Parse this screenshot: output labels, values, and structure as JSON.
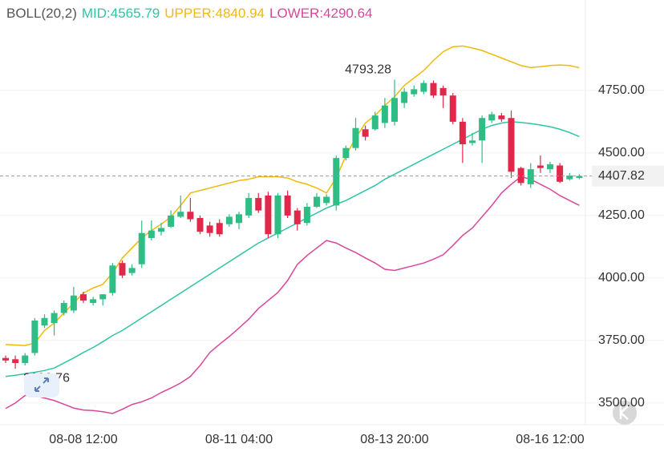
{
  "chart_data": {
    "type": "candlestick",
    "indicator": "BOLL(20,2)",
    "categories": [
      null,
      null,
      null,
      null,
      null,
      null,
      null,
      null,
      "08-08 12:00",
      null,
      null,
      null,
      null,
      null,
      null,
      null,
      null,
      null,
      null,
      null,
      null,
      null,
      null,
      null,
      "08-11 04:00",
      null,
      null,
      null,
      null,
      null,
      null,
      null,
      null,
      null,
      null,
      null,
      null,
      null,
      null,
      null,
      "08-13 20:00",
      null,
      null,
      null,
      null,
      null,
      null,
      null,
      null,
      null,
      null,
      null,
      null,
      null,
      null,
      null,
      "08-16 12:00",
      null,
      null,
      null
    ],
    "ohlc": {
      "open": [
        3680,
        3675,
        3660,
        3700,
        3810,
        3820,
        3860,
        3870,
        3935,
        3900,
        3915,
        3940,
        4060,
        4020,
        4055,
        4160,
        4185,
        4205,
        4245,
        4265,
        4240,
        4210,
        4220,
        4215,
        4220,
        4250,
        4320,
        4330,
        4175,
        4330,
        4270,
        4220,
        4285,
        4300,
        4290,
        4480,
        4520,
        4595,
        4595,
        4620,
        4625,
        4700,
        4735,
        4745,
        4780,
        4760,
        4730,
        4625,
        4540,
        4550,
        4630,
        4650,
        4640,
        4440,
        4375,
        4450,
        4435,
        4450,
        4395,
        4400
      ],
      "high": [
        3690,
        3690,
        3700,
        3840,
        3855,
        3870,
        3910,
        3965,
        3945,
        3925,
        3935,
        4060,
        4070,
        4055,
        4230,
        4230,
        4220,
        4270,
        4330,
        4320,
        4250,
        4225,
        4235,
        4255,
        4265,
        4340,
        4340,
        4345,
        4340,
        4350,
        4280,
        4300,
        4340,
        4335,
        4490,
        4530,
        4640,
        4610,
        4665,
        4720,
        4793.28,
        4760,
        4770,
        4790,
        4790,
        4770,
        4740,
        4640,
        4580,
        4650,
        4665,
        4660,
        4670,
        4445,
        4460,
        4490,
        4465,
        4460,
        4420,
        4415
      ],
      "low": [
        3660,
        3636.76,
        3650,
        3690,
        3800,
        3770,
        3850,
        3860,
        3900,
        3890,
        3890,
        3930,
        4000,
        4010,
        4040,
        4150,
        4170,
        4200,
        4240,
        4225,
        4175,
        4165,
        4165,
        4205,
        4195,
        4240,
        4260,
        4160,
        4160,
        4240,
        4190,
        4210,
        4280,
        4290,
        4270,
        4470,
        4510,
        4550,
        4590,
        4600,
        4610,
        4680,
        4725,
        4735,
        4720,
        4680,
        4615,
        4460,
        4530,
        4460,
        4620,
        4625,
        4400,
        4370,
        4360,
        4420,
        4420,
        4380,
        4390,
        4395
      ],
      "close": [
        3670,
        3660,
        3690,
        3830,
        3840,
        3860,
        3900,
        3930,
        3910,
        3915,
        3935,
        4050,
        4010,
        4040,
        4180,
        4190,
        4200,
        4250,
        4265,
        4235,
        4185,
        4180,
        4175,
        4245,
        4255,
        4320,
        4270,
        4175,
        4330,
        4250,
        4215,
        4285,
        4325,
        4325,
        4480,
        4520,
        4600,
        4565,
        4650,
        4690,
        4720,
        4745,
        4755,
        4780,
        4730,
        4730,
        4625,
        4535,
        4550,
        4640,
        4655,
        4635,
        4425,
        4380,
        4435,
        4440,
        4455,
        4385,
        4410,
        4407.82
      ],
      "up_color": "#2ebd85",
      "down_color": "#e0294a"
    },
    "bands": [
      {
        "name": "MID:4565.79",
        "color": "#2fc4a5",
        "values": [
          3606,
          3611,
          3617,
          3623,
          3630,
          3640,
          3660,
          3680,
          3702,
          3722,
          3745,
          3770,
          3790,
          3815,
          3840,
          3865,
          3890,
          3915,
          3940,
          3965,
          3990,
          4015,
          4040,
          4065,
          4090,
          4115,
          4140,
          4160,
          4180,
          4200,
          4220,
          4240,
          4260,
          4280,
          4295,
          4310,
          4330,
          4350,
          4370,
          4395,
          4415,
          4435,
          4455,
          4475,
          4495,
          4515,
          4535,
          4555,
          4575,
          4595,
          4610,
          4620,
          4625,
          4622,
          4618,
          4612,
          4605,
          4595,
          4582,
          4565.79
        ]
      },
      {
        "name": "UPPER:4840.94",
        "color": "#f0b90b",
        "values": [
          3734,
          3732,
          3730,
          3740,
          3790,
          3820,
          3860,
          3900,
          3940,
          3960,
          3975,
          4020,
          4080,
          4120,
          4160,
          4190,
          4215,
          4245,
          4290,
          4340,
          4350,
          4360,
          4370,
          4380,
          4390,
          4395,
          4405,
          4405,
          4405,
          4400,
          4385,
          4375,
          4360,
          4340,
          4400,
          4490,
          4560,
          4620,
          4650,
          4690,
          4725,
          4770,
          4800,
          4830,
          4870,
          4905,
          4925,
          4928,
          4920,
          4910,
          4895,
          4880,
          4865,
          4850,
          4842,
          4845,
          4850,
          4852,
          4850,
          4840.94
        ]
      },
      {
        "name": "LOWER:4290.64",
        "color": "#d9479a",
        "values": [
          3478,
          3500,
          3530,
          3530,
          3520,
          3510,
          3495,
          3480,
          3472,
          3470,
          3465,
          3458,
          3475,
          3494,
          3505,
          3520,
          3542,
          3560,
          3580,
          3606,
          3650,
          3702,
          3735,
          3766,
          3800,
          3835,
          3878,
          3910,
          3942,
          3990,
          4054,
          4090,
          4120,
          4150,
          4140,
          4120,
          4102,
          4080,
          4060,
          4035,
          4030,
          4040,
          4050,
          4060,
          4075,
          4093,
          4130,
          4170,
          4200,
          4245,
          4290,
          4340,
          4375,
          4405,
          4395,
          4375,
          4355,
          4330,
          4310,
          4290.64
        ]
      }
    ],
    "ylim": [
      3413,
      5112
    ],
    "yticks": [
      {
        "value": 3500,
        "label": "3500.00"
      },
      {
        "value": 3750,
        "label": "3750.00"
      },
      {
        "value": 4000,
        "label": "4000.00"
      },
      {
        "value": 4250,
        "label": "4250.00"
      },
      {
        "value": 4500,
        "label": "4500.00"
      },
      {
        "value": 4750,
        "label": "4750.00"
      }
    ],
    "grid": true
  }
}
